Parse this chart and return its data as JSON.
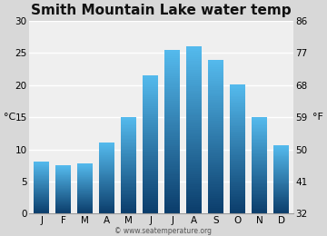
{
  "title": "Smith Mountain Lake water temp",
  "months": [
    "J",
    "F",
    "M",
    "A",
    "M",
    "J",
    "J",
    "A",
    "S",
    "O",
    "N",
    "D"
  ],
  "values_c": [
    8.1,
    7.5,
    7.8,
    11.0,
    15.0,
    21.6,
    25.5,
    26.0,
    24.0,
    20.1,
    15.0,
    10.6
  ],
  "ylim_c": [
    0,
    30
  ],
  "yticks_c": [
    0,
    5,
    10,
    15,
    20,
    25,
    30
  ],
  "yticks_f": [
    32,
    41,
    50,
    59,
    68,
    77,
    86
  ],
  "ylabel_left": "°C",
  "ylabel_right": "°F",
  "bar_color_top": "#55BBEE",
  "bar_color_bottom": "#0B3D6B",
  "bg_color": "#D8D8D8",
  "plot_bg_color": "#EFEFEF",
  "grid_color": "#FFFFFF",
  "watermark": "© www.seatemperature.org",
  "title_fontsize": 11,
  "tick_fontsize": 7.5,
  "label_fontsize": 8
}
